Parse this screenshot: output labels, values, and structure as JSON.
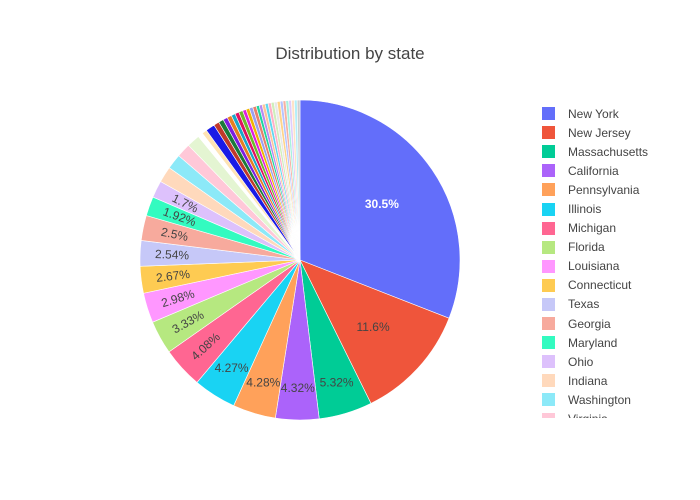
{
  "chart_data": {
    "type": "pie",
    "title": "Distribution by state",
    "legend_position": "right",
    "slices": [
      {
        "label": "New York",
        "value": 30.5,
        "color": "#636efa"
      },
      {
        "label": "New Jersey",
        "value": 11.6,
        "color": "#ef553b"
      },
      {
        "label": "Massachusetts",
        "value": 5.32,
        "color": "#00cc96"
      },
      {
        "label": "California",
        "value": 4.32,
        "color": "#ab63fa"
      },
      {
        "label": "Pennsylvania",
        "value": 4.28,
        "color": "#ffa15a"
      },
      {
        "label": "Illinois",
        "value": 4.27,
        "color": "#19d3f3"
      },
      {
        "label": "Michigan",
        "value": 4.08,
        "color": "#ff6692"
      },
      {
        "label": "Florida",
        "value": 3.33,
        "color": "#b6e880"
      },
      {
        "label": "Louisiana",
        "value": 2.98,
        "color": "#ff97ff"
      },
      {
        "label": "Connecticut",
        "value": 2.67,
        "color": "#fecb52"
      },
      {
        "label": "Texas",
        "value": 2.54,
        "color": "#c6c8f8"
      },
      {
        "label": "Georgia",
        "value": 2.5,
        "color": "#f7aa9d"
      },
      {
        "label": "Maryland",
        "value": 1.92,
        "color": "#33fbc0"
      },
      {
        "label": "Ohio",
        "value": 1.7,
        "color": "#ddc1fc"
      },
      {
        "label": "Indiana",
        "value": 1.6,
        "color": "#ffd9bc"
      },
      {
        "label": "Washington",
        "value": 1.5,
        "color": "#8ce9f8"
      },
      {
        "label": "Virginia",
        "value": 1.4,
        "color": "#ffc8d8"
      },
      {
        "label": "",
        "value": 1.3,
        "color": "#e4f5d2"
      },
      {
        "label": "",
        "value": 0.5,
        "color": "#ffffff"
      },
      {
        "label": "",
        "value": 0.5,
        "color": "#fee3b4"
      },
      {
        "label": "",
        "value": 0.9,
        "color": "#1a1ae6"
      },
      {
        "label": "",
        "value": 0.55,
        "color": "#c0392b"
      },
      {
        "label": "",
        "value": 0.5,
        "color": "#1b7a3a"
      },
      {
        "label": "",
        "value": 0.45,
        "color": "#7b1fe0"
      },
      {
        "label": "",
        "value": 0.45,
        "color": "#e67e22"
      },
      {
        "label": "",
        "value": 0.4,
        "color": "#1aa8c8"
      },
      {
        "label": "",
        "value": 0.4,
        "color": "#e0115f"
      },
      {
        "label": "",
        "value": 0.4,
        "color": "#6dbb2a"
      },
      {
        "label": "",
        "value": 0.35,
        "color": "#e01ee0"
      },
      {
        "label": "",
        "value": 0.35,
        "color": "#f0b400"
      },
      {
        "label": "",
        "value": 0.35,
        "color": "#9aa0f0"
      },
      {
        "label": "",
        "value": 0.35,
        "color": "#e8806b"
      },
      {
        "label": "",
        "value": 0.3,
        "color": "#1fd6a0"
      },
      {
        "label": "",
        "value": 0.3,
        "color": "#b88af2"
      },
      {
        "label": "",
        "value": 0.3,
        "color": "#ffc49a"
      },
      {
        "label": "",
        "value": 0.3,
        "color": "#5fd8ee"
      },
      {
        "label": "",
        "value": 0.3,
        "color": "#ffb0c8"
      },
      {
        "label": "",
        "value": 0.3,
        "color": "#d0eebb"
      },
      {
        "label": "",
        "value": 0.3,
        "color": "#e8e8e8"
      },
      {
        "label": "",
        "value": 0.3,
        "color": "#ffd48a"
      },
      {
        "label": "",
        "value": 0.28,
        "color": "#b6c4ff"
      },
      {
        "label": "",
        "value": 0.28,
        "color": "#f5b2a3"
      },
      {
        "label": "",
        "value": 0.28,
        "color": "#a8f0de"
      },
      {
        "label": "",
        "value": 0.28,
        "color": "#e0cdfb"
      },
      {
        "label": "",
        "value": 0.28,
        "color": "#ffe2c6"
      },
      {
        "label": "",
        "value": 0.28,
        "color": "#b4eef8"
      },
      {
        "label": "",
        "value": 0.28,
        "color": "#cfcfcf"
      }
    ],
    "displayed_percent_labels": [
      "30.5%",
      "11.6%",
      "5.32%",
      "4.32%",
      "4.28%",
      "4.27%",
      "4.08%",
      "3.33%",
      "2.98%",
      "2.67%",
      "2.54%",
      "2.5%",
      "1.92%",
      "1.7%"
    ]
  }
}
